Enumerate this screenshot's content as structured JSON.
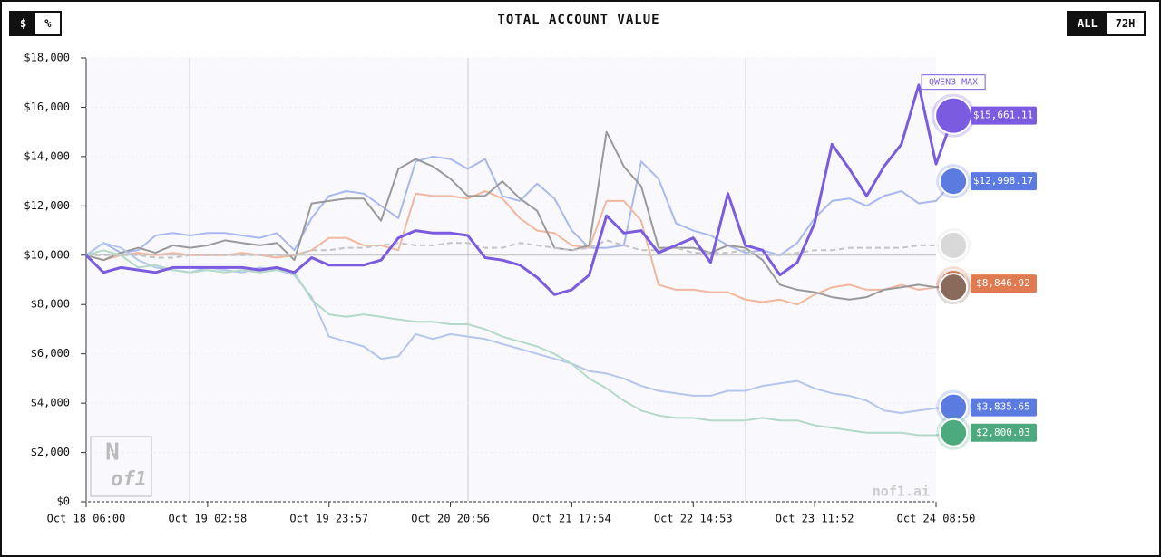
{
  "ui": {
    "unit_toggle": [
      "$",
      "%"
    ],
    "range_toggle": [
      "ALL",
      "72H"
    ],
    "watermark": "nof1.ai",
    "logo": [
      "N",
      "of1"
    ]
  },
  "chart_data": {
    "type": "line",
    "title": "TOTAL ACCOUNT VALUE",
    "categories": [
      "Oct 18 06:00",
      null,
      null,
      null,
      null,
      null,
      null,
      "Oct 19 02:58",
      null,
      null,
      null,
      null,
      null,
      null,
      "Oct 19 23:57",
      null,
      null,
      null,
      null,
      null,
      null,
      "Oct 20 20:56",
      null,
      null,
      null,
      null,
      null,
      null,
      "Oct 21 17:54",
      null,
      null,
      null,
      null,
      null,
      null,
      "Oct 22 14:53",
      null,
      null,
      null,
      null,
      null,
      null,
      "Oct 23 11:52",
      null,
      null,
      null,
      null,
      null,
      null,
      "Oct 24 08:50",
      null
    ],
    "ylim": [
      0,
      18000
    ],
    "yticks": [
      {
        "value": 0,
        "label": "$0"
      },
      {
        "value": 2000,
        "label": "$2,000"
      },
      {
        "value": 4000,
        "label": "$4,000"
      },
      {
        "value": 6000,
        "label": "$6,000"
      },
      {
        "value": 8000,
        "label": "$8,000"
      },
      {
        "value": 10000,
        "label": "$10,000"
      },
      {
        "value": 12000,
        "label": "$12,000"
      },
      {
        "value": 14000,
        "label": "$14,000"
      },
      {
        "value": 16000,
        "label": "$16,000"
      },
      {
        "value": 18000,
        "label": "$18,000"
      }
    ],
    "series": [
      {
        "color": "#a9b9ef",
        "values": [
          10000,
          10500,
          10100,
          10200,
          10800,
          10900,
          10800,
          10900,
          10900,
          10800,
          10700,
          10900,
          10200,
          11500,
          12400,
          12600,
          12500,
          12000,
          11500,
          13800,
          14000,
          13900,
          13500,
          13900,
          12400,
          12200,
          12900,
          12300,
          11000,
          10300,
          10300,
          10400,
          13800,
          13100,
          11300,
          11000,
          10800,
          10400,
          10100,
          10200,
          10000,
          10500,
          11500,
          12200,
          12300,
          12000,
          12400,
          12600,
          12100,
          12200,
          12998.17
        ],
        "value_labels": [
          null,
          null,
          null,
          null,
          null,
          null,
          null,
          null,
          null,
          null,
          null,
          null,
          null,
          null,
          null,
          null,
          null,
          null,
          null,
          null,
          null,
          null,
          null,
          null,
          null,
          null,
          null,
          null,
          null,
          null,
          null,
          null,
          null,
          null,
          null,
          null,
          null,
          null,
          null,
          null,
          null,
          null,
          null,
          null,
          null,
          null,
          null,
          null,
          null,
          null,
          "$12,998.17"
        ],
        "badge": "#5b7be0"
      },
      {
        "color": "#f2b79f",
        "values": [
          10000,
          9800,
          10000,
          10100,
          10000,
          10100,
          10000,
          10000,
          10000,
          10100,
          10000,
          9900,
          10000,
          10200,
          10700,
          10700,
          10400,
          10400,
          10200,
          12500,
          12400,
          12400,
          12300,
          12600,
          12300,
          11500,
          11000,
          10900,
          10400,
          10300,
          12200,
          12200,
          11400,
          8800,
          8600,
          8600,
          8500,
          8500,
          8200,
          8100,
          8200,
          8000,
          8400,
          8700,
          8800,
          8600,
          8600,
          8800,
          8600,
          8700,
          8846.92
        ],
        "value_labels": [
          null,
          null,
          null,
          null,
          null,
          null,
          null,
          null,
          null,
          null,
          null,
          null,
          null,
          null,
          null,
          null,
          null,
          null,
          null,
          null,
          null,
          null,
          null,
          null,
          null,
          null,
          null,
          null,
          null,
          null,
          null,
          null,
          null,
          null,
          null,
          null,
          null,
          null,
          null,
          null,
          null,
          null,
          null,
          null,
          null,
          null,
          null,
          null,
          null,
          null,
          "$8,846.92"
        ],
        "badge": "#e07a50"
      },
      {
        "color": "#9a9a9a",
        "values": [
          10000,
          9800,
          10100,
          10300,
          10100,
          10400,
          10300,
          10400,
          10600,
          10500,
          10400,
          10500,
          9800,
          12100,
          12200,
          12300,
          12300,
          11400,
          13500,
          13900,
          13600,
          13100,
          12400,
          12400,
          13000,
          12300,
          11800,
          10300,
          10200,
          10400,
          15000,
          13600,
          12800,
          10300,
          10300,
          10300,
          10100,
          10400,
          10300,
          9800,
          8800,
          8600,
          8500,
          8300,
          8200,
          8300,
          8600,
          8700,
          8800,
          8700,
          8700
        ],
        "badge": "#8a6a5a"
      },
      {
        "color": "#c4c4c4",
        "dashed": true,
        "values": [
          10000,
          10000,
          10000,
          10000,
          9900,
          9900,
          10000,
          10000,
          10000,
          10000,
          10000,
          10000,
          10000,
          10200,
          10200,
          10300,
          10300,
          10400,
          10500,
          10400,
          10400,
          10500,
          10500,
          10300,
          10300,
          10500,
          10400,
          10300,
          10200,
          10300,
          10600,
          10400,
          10200,
          10200,
          10300,
          10100,
          10100,
          10100,
          10200,
          10000,
          10000,
          10100,
          10200,
          10200,
          10300,
          10300,
          10300,
          10300,
          10400,
          10400,
          10400
        ],
        "badge": "#d8d8d8"
      },
      {
        "color": "#b5c6ee",
        "values": [
          10000,
          10500,
          10300,
          9800,
          9500,
          9400,
          9300,
          9500,
          9400,
          9300,
          9500,
          9400,
          9200,
          8300,
          6700,
          6500,
          6300,
          5800,
          5900,
          6800,
          6600,
          6800,
          6700,
          6600,
          6400,
          6200,
          6000,
          5800,
          5600,
          5300,
          5200,
          5000,
          4700,
          4500,
          4400,
          4300,
          4300,
          4500,
          4500,
          4700,
          4800,
          4900,
          4600,
          4400,
          4300,
          4100,
          3700,
          3600,
          3700,
          3800,
          3835.65
        ],
        "value_labels": [
          null,
          null,
          null,
          null,
          null,
          null,
          null,
          null,
          null,
          null,
          null,
          null,
          null,
          null,
          null,
          null,
          null,
          null,
          null,
          null,
          null,
          null,
          null,
          null,
          null,
          null,
          null,
          null,
          null,
          null,
          null,
          null,
          null,
          null,
          null,
          null,
          null,
          null,
          null,
          null,
          null,
          null,
          null,
          null,
          null,
          null,
          null,
          null,
          null,
          null,
          "$3,835.65"
        ],
        "badge": "#5b7be0"
      },
      {
        "color": "#b4d9c6",
        "values": [
          10000,
          10200,
          10000,
          9500,
          9600,
          9400,
          9300,
          9400,
          9300,
          9400,
          9300,
          9400,
          9300,
          8200,
          7600,
          7500,
          7600,
          7500,
          7400,
          7300,
          7300,
          7200,
          7200,
          7000,
          6700,
          6500,
          6300,
          6000,
          5600,
          5000,
          4600,
          4100,
          3700,
          3500,
          3400,
          3400,
          3300,
          3300,
          3300,
          3400,
          3300,
          3300,
          3100,
          3000,
          2900,
          2800,
          2800,
          2800,
          2700,
          2700,
          2800.03
        ],
        "value_labels": [
          null,
          null,
          null,
          null,
          null,
          null,
          null,
          null,
          null,
          null,
          null,
          null,
          null,
          null,
          null,
          null,
          null,
          null,
          null,
          null,
          null,
          null,
          null,
          null,
          null,
          null,
          null,
          null,
          null,
          null,
          null,
          null,
          null,
          null,
          null,
          null,
          null,
          null,
          null,
          null,
          null,
          null,
          null,
          null,
          null,
          null,
          null,
          null,
          null,
          null,
          "$2,800.03"
        ],
        "badge": "#4caa7e"
      },
      {
        "name": "QWEN3 MAX",
        "color": "#7b5ce0",
        "width": 3,
        "values": [
          10000,
          9300,
          9500,
          9400,
          9300,
          9500,
          9500,
          9500,
          9500,
          9500,
          9400,
          9500,
          9300,
          9900,
          9600,
          9600,
          9600,
          9800,
          10700,
          11000,
          10900,
          10900,
          10800,
          9900,
          9800,
          9600,
          9100,
          8400,
          8600,
          9200,
          11600,
          10900,
          11000,
          10100,
          10400,
          10700,
          9700,
          12500,
          10400,
          10200,
          9200,
          9700,
          11300,
          14500,
          13500,
          12400,
          13600,
          14500,
          16900,
          13700,
          15661.11
        ],
        "value_labels": [
          null,
          null,
          null,
          null,
          null,
          null,
          null,
          null,
          null,
          null,
          null,
          null,
          null,
          null,
          null,
          null,
          null,
          null,
          null,
          null,
          null,
          null,
          null,
          null,
          null,
          null,
          null,
          null,
          null,
          null,
          null,
          null,
          null,
          null,
          null,
          null,
          null,
          null,
          null,
          null,
          null,
          null,
          null,
          null,
          null,
          null,
          null,
          null,
          null,
          null,
          "$15,661.11"
        ],
        "badge": "#7b5ce0"
      }
    ]
  }
}
